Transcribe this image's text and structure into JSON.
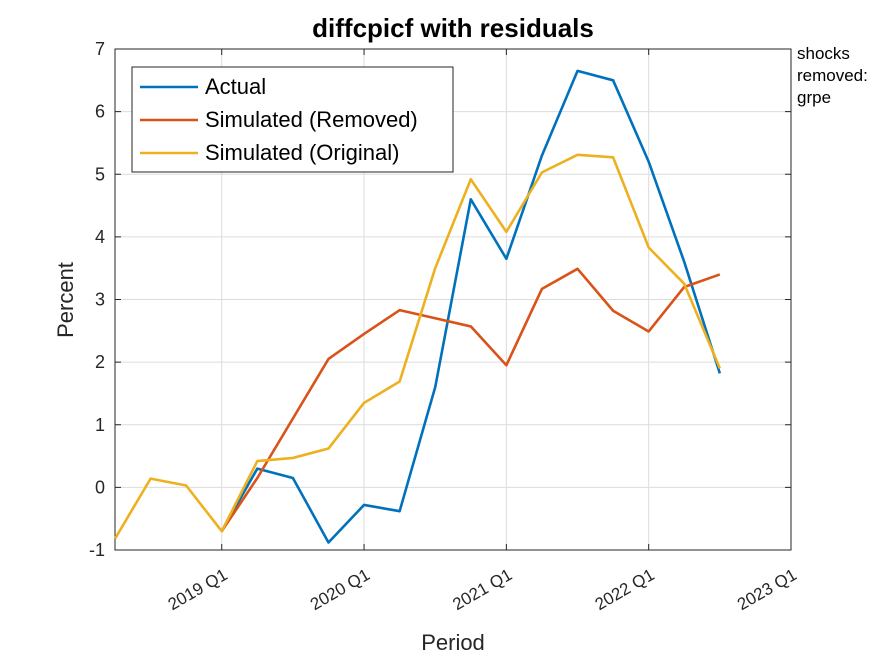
{
  "chart_data": {
    "type": "line",
    "title": "diffcpicf with residuals",
    "xlabel": "Period",
    "ylabel": "Percent",
    "ylim": [
      -1,
      7
    ],
    "yticks": [
      -1,
      0,
      1,
      2,
      3,
      4,
      5,
      6,
      7
    ],
    "x": [
      "2018 Q2",
      "2018 Q3",
      "2018 Q4",
      "2019 Q1",
      "2019 Q2",
      "2019 Q3",
      "2019 Q4",
      "2020 Q1",
      "2020 Q2",
      "2020 Q3",
      "2020 Q4",
      "2021 Q1",
      "2021 Q2",
      "2021 Q3",
      "2021 Q4",
      "2022 Q1",
      "2022 Q2",
      "2022 Q3",
      "2022 Q4",
      "2023 Q1"
    ],
    "xtick_labels": [
      "2019 Q1",
      "2020 Q1",
      "2021 Q1",
      "2022 Q1",
      "2023 Q1"
    ],
    "grid": true,
    "legend_position": "top-left",
    "series": [
      {
        "name": "Actual",
        "color": "#0072BD",
        "values": [
          null,
          null,
          null,
          -0.7,
          0.3,
          0.15,
          -0.88,
          -0.28,
          -0.38,
          1.6,
          4.6,
          3.65,
          5.3,
          6.65,
          6.5,
          5.2,
          3.6,
          1.82,
          null,
          null
        ]
      },
      {
        "name": "Simulated (Removed)",
        "color": "#D95319",
        "values": [
          null,
          null,
          null,
          -0.7,
          0.15,
          1.1,
          2.05,
          2.45,
          2.83,
          2.7,
          2.57,
          1.95,
          3.17,
          3.49,
          2.82,
          2.49,
          3.2,
          3.4,
          null,
          null
        ]
      },
      {
        "name": "Simulated (Original)",
        "color": "#EDB120",
        "values": [
          -0.82,
          0.14,
          0.03,
          -0.7,
          0.42,
          0.47,
          0.62,
          1.35,
          1.69,
          3.5,
          4.92,
          4.08,
          5.03,
          5.31,
          5.27,
          3.83,
          3.25,
          1.9,
          null,
          null
        ]
      }
    ]
  },
  "side_notes": [
    "shocks",
    "removed:",
    "grpe"
  ]
}
